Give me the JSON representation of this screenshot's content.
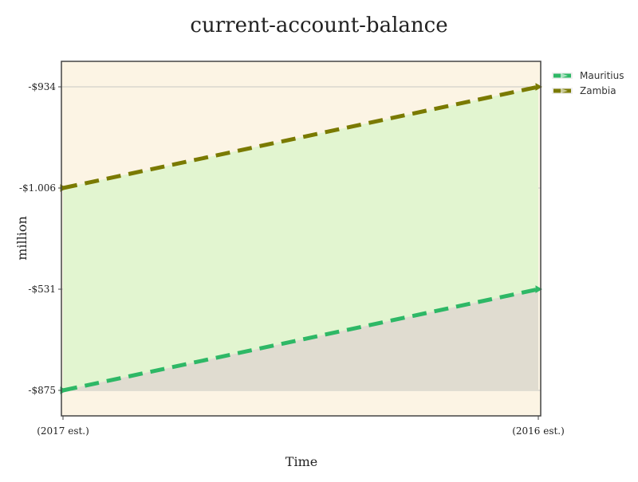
{
  "chart_data": {
    "type": "area",
    "title": "current-account-balance",
    "xlabel": "Time",
    "ylabel": "million",
    "categories": [
      "(2017 est.)",
      "(2016 est.)"
    ],
    "y_ticks": [
      "-$934",
      "-$1.006",
      "-$531",
      "-$875"
    ],
    "series": [
      {
        "name": "Mauritius",
        "values": [
          "-$875",
          "-$531"
        ],
        "color": "#2eb866",
        "line_style": "dashed"
      },
      {
        "name": "Zambia",
        "values": [
          "-$1.006",
          "-$934"
        ],
        "color": "#7a7a00",
        "line_style": "dashed"
      }
    ],
    "plot_background": "#fcf4e4",
    "fill_colors": {
      "between_series": "#e2f5d0",
      "below_lower_series": "#e0dcd0"
    },
    "grid": true,
    "legend_position": "right-top"
  }
}
